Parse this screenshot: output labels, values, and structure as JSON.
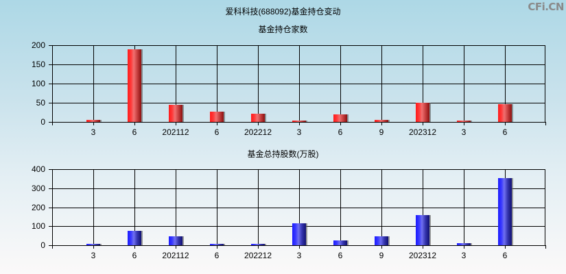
{
  "header": {
    "title": "爱科科技(688092)基金持仓变动",
    "watermark": "CFi.CN"
  },
  "chart_data": [
    {
      "type": "bar",
      "title": "基金持仓家数",
      "xlabel": "",
      "ylabel": "",
      "categories": [
        "3",
        "6",
        "202112",
        "6",
        "202212",
        "3",
        "6",
        "9",
        "202312",
        "3",
        "6"
      ],
      "values": [
        5,
        189,
        45,
        27,
        21,
        3,
        20,
        5,
        50,
        3,
        47
      ],
      "ylim": [
        0,
        200
      ],
      "yticks": [
        "0",
        "50",
        "100",
        "150",
        "200"
      ],
      "grid": true,
      "color": "#e02020"
    },
    {
      "type": "bar",
      "title": "基金总持股数(万股)",
      "xlabel": "",
      "ylabel": "",
      "categories": [
        "3",
        "6",
        "202112",
        "6",
        "202212",
        "3",
        "6",
        "9",
        "202312",
        "3",
        "6"
      ],
      "values": [
        2,
        77,
        48,
        3,
        3,
        117,
        26,
        47,
        158,
        10,
        354
      ],
      "ylim": [
        0,
        400
      ],
      "yticks": [
        "0",
        "100",
        "200",
        "300",
        "400"
      ],
      "grid": true,
      "color": "#2020e0"
    }
  ]
}
